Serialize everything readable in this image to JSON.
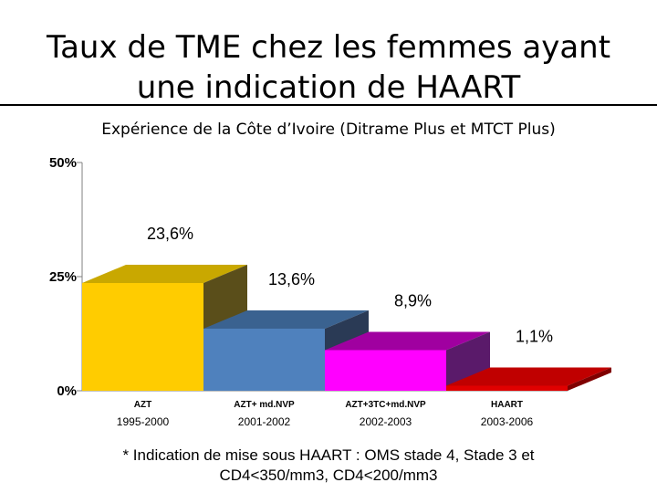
{
  "title_line1": "Taux de TME chez les femmes ayant",
  "title_line2": "une indication de HAART",
  "subtitle": "Expérience de la Côte d’Ivoire (Ditrame Plus et MTCT Plus)",
  "footnote_line1": "* Indication de mise sous HAART :  OMS stade 4,  Stade 3 et",
  "footnote_line2": "CD4<350/mm3, CD4<200/mm3",
  "chart_data": {
    "type": "bar",
    "style": "3d",
    "title": "",
    "xlabel": "",
    "ylabel": "",
    "ylim": [
      0,
      50
    ],
    "yticks": [
      0,
      25,
      50
    ],
    "ytick_labels": [
      "0%",
      "25%",
      "50%"
    ],
    "grid": false,
    "legend": "none",
    "categories": [
      "AZT",
      "AZT+ md.NVP",
      "AZT+3TC+md.NVP",
      "HAART"
    ],
    "periods": [
      "1995-2000",
      "2001-2002",
      "2002-2003",
      "2003-2006"
    ],
    "values": [
      23.6,
      13.6,
      8.9,
      1.1
    ],
    "value_labels": [
      "23,6%",
      "13,6%",
      "8,9%",
      "1,1%"
    ],
    "colors": [
      "#FFCC00",
      "#4F81BD",
      "#FF00FF",
      "#E00000"
    ],
    "top_colors": [
      "#C9A800",
      "#3A6290",
      "#A000A0",
      "#C00000"
    ],
    "side_colors": [
      "#5A4E1A",
      "#2A3A55",
      "#5A1A6A",
      "#800000"
    ]
  }
}
